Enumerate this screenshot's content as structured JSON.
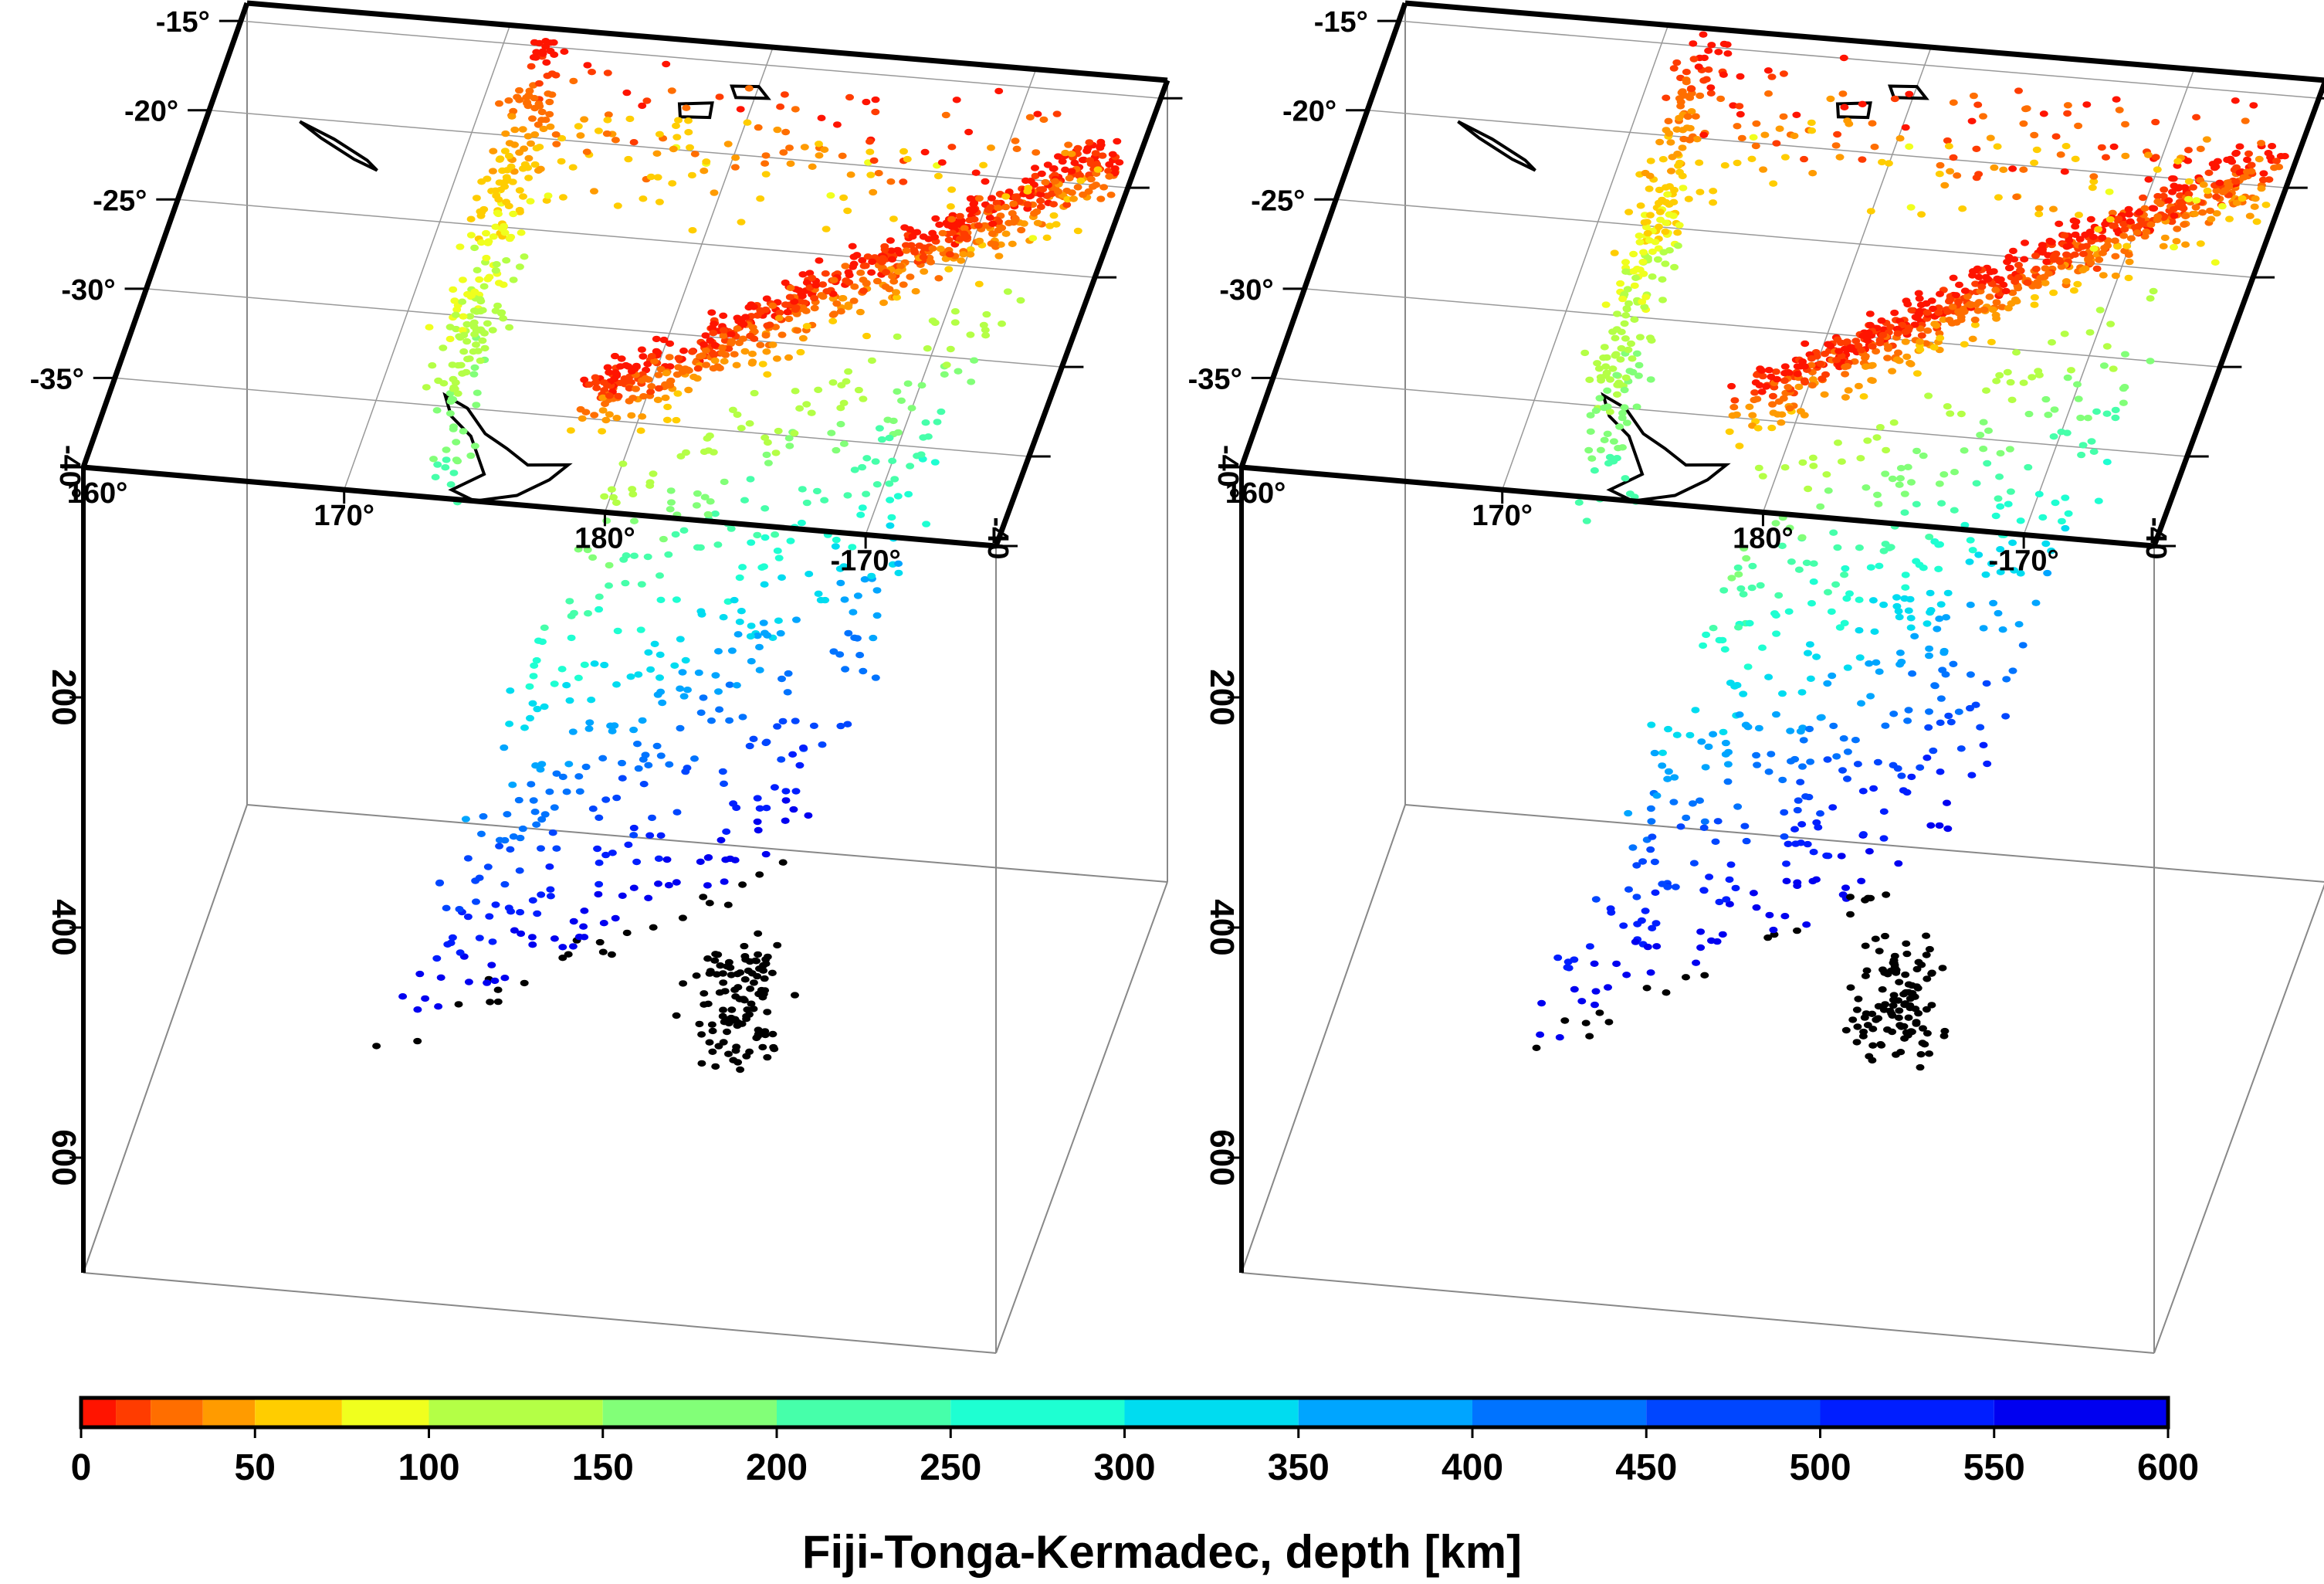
{
  "chart_data": [
    {
      "type": "scatter",
      "view": "3d-perspective",
      "panel": "left",
      "xlabels": [
        "160°",
        "170°",
        "180°",
        "-170°"
      ],
      "ylabels": [
        "-15°",
        "-20°",
        "-25°",
        "-30°",
        "-35°",
        "-40°"
      ],
      "right_corner_label": "-40",
      "zlabels": [
        "200",
        "400",
        "600"
      ],
      "xrange": [
        160,
        195
      ],
      "yrange": [
        -40,
        -14
      ],
      "zrange": [
        0,
        700
      ],
      "grid": true
    },
    {
      "type": "scatter",
      "view": "3d-perspective",
      "panel": "right",
      "xlabels": [
        "160°",
        "170°",
        "180°",
        "-170°"
      ],
      "ylabels": [
        "-15°",
        "-20°",
        "-25°",
        "-30°",
        "-35°",
        "-40°"
      ],
      "right_corner_label": "-40",
      "zlabels": [
        "200",
        "400",
        "600"
      ],
      "xrange": [
        160,
        195
      ],
      "yrange": [
        -40,
        -14
      ],
      "zrange": [
        0,
        700
      ],
      "grid": true
    }
  ],
  "colorbar": {
    "title": "Fiji-Tonga-Kermadec, depth [km]",
    "range": [
      0,
      600
    ],
    "ticks": [
      "0",
      "50",
      "100",
      "150",
      "200",
      "250",
      "300",
      "350",
      "400",
      "450",
      "500",
      "550",
      "600"
    ],
    "stops": [
      {
        "from": 0,
        "to": 10,
        "color": "#ff1400"
      },
      {
        "from": 10,
        "to": 20,
        "color": "#ff3c00"
      },
      {
        "from": 20,
        "to": 35,
        "color": "#ff6e00"
      },
      {
        "from": 35,
        "to": 50,
        "color": "#ff9b00"
      },
      {
        "from": 50,
        "to": 75,
        "color": "#ffcd00"
      },
      {
        "from": 75,
        "to": 100,
        "color": "#f0ff1e"
      },
      {
        "from": 100,
        "to": 150,
        "color": "#b4ff46"
      },
      {
        "from": 150,
        "to": 200,
        "color": "#82ff78"
      },
      {
        "from": 200,
        "to": 250,
        "color": "#46ffaa"
      },
      {
        "from": 250,
        "to": 300,
        "color": "#1effd2"
      },
      {
        "from": 300,
        "to": 350,
        "color": "#00dcf0"
      },
      {
        "from": 350,
        "to": 400,
        "color": "#00a5ff"
      },
      {
        "from": 400,
        "to": 450,
        "color": "#0073ff"
      },
      {
        "from": 450,
        "to": 500,
        "color": "#0046ff"
      },
      {
        "from": 500,
        "to": 550,
        "color": "#001eff"
      },
      {
        "from": 550,
        "to": 600,
        "color": "#0000f0"
      }
    ],
    "beyond_color": "#000000"
  }
}
